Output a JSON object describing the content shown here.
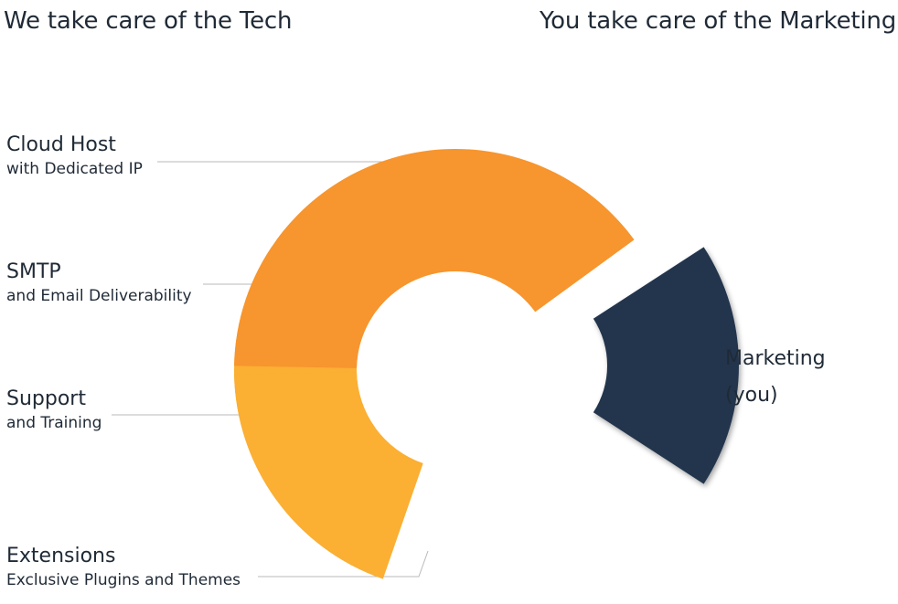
{
  "header": {
    "left_text": "We take care of the Tech",
    "right_text": "You take care of the Marketing"
  },
  "segments": [
    {
      "title": "Cloud Host",
      "subtitle": "with Dedicated IP",
      "color": "#f7952e"
    },
    {
      "title": "SMTP",
      "subtitle": "and Email Deliverability",
      "color": "#fbaf33"
    },
    {
      "title": "Support",
      "subtitle": "and Training",
      "color": "#f7952e"
    },
    {
      "title": "Extensions",
      "subtitle": "Exclusive Plugins and Themes",
      "color": "#fbaf33"
    },
    {
      "title": "Marketing",
      "subtitle": "(you)",
      "color": "#23344d"
    }
  ],
  "colors": {
    "orange": "#f7952e",
    "yellow": "#fbaf33",
    "navy": "#23344d",
    "leader": "#b9b9b9",
    "text": "#1f2a36"
  }
}
